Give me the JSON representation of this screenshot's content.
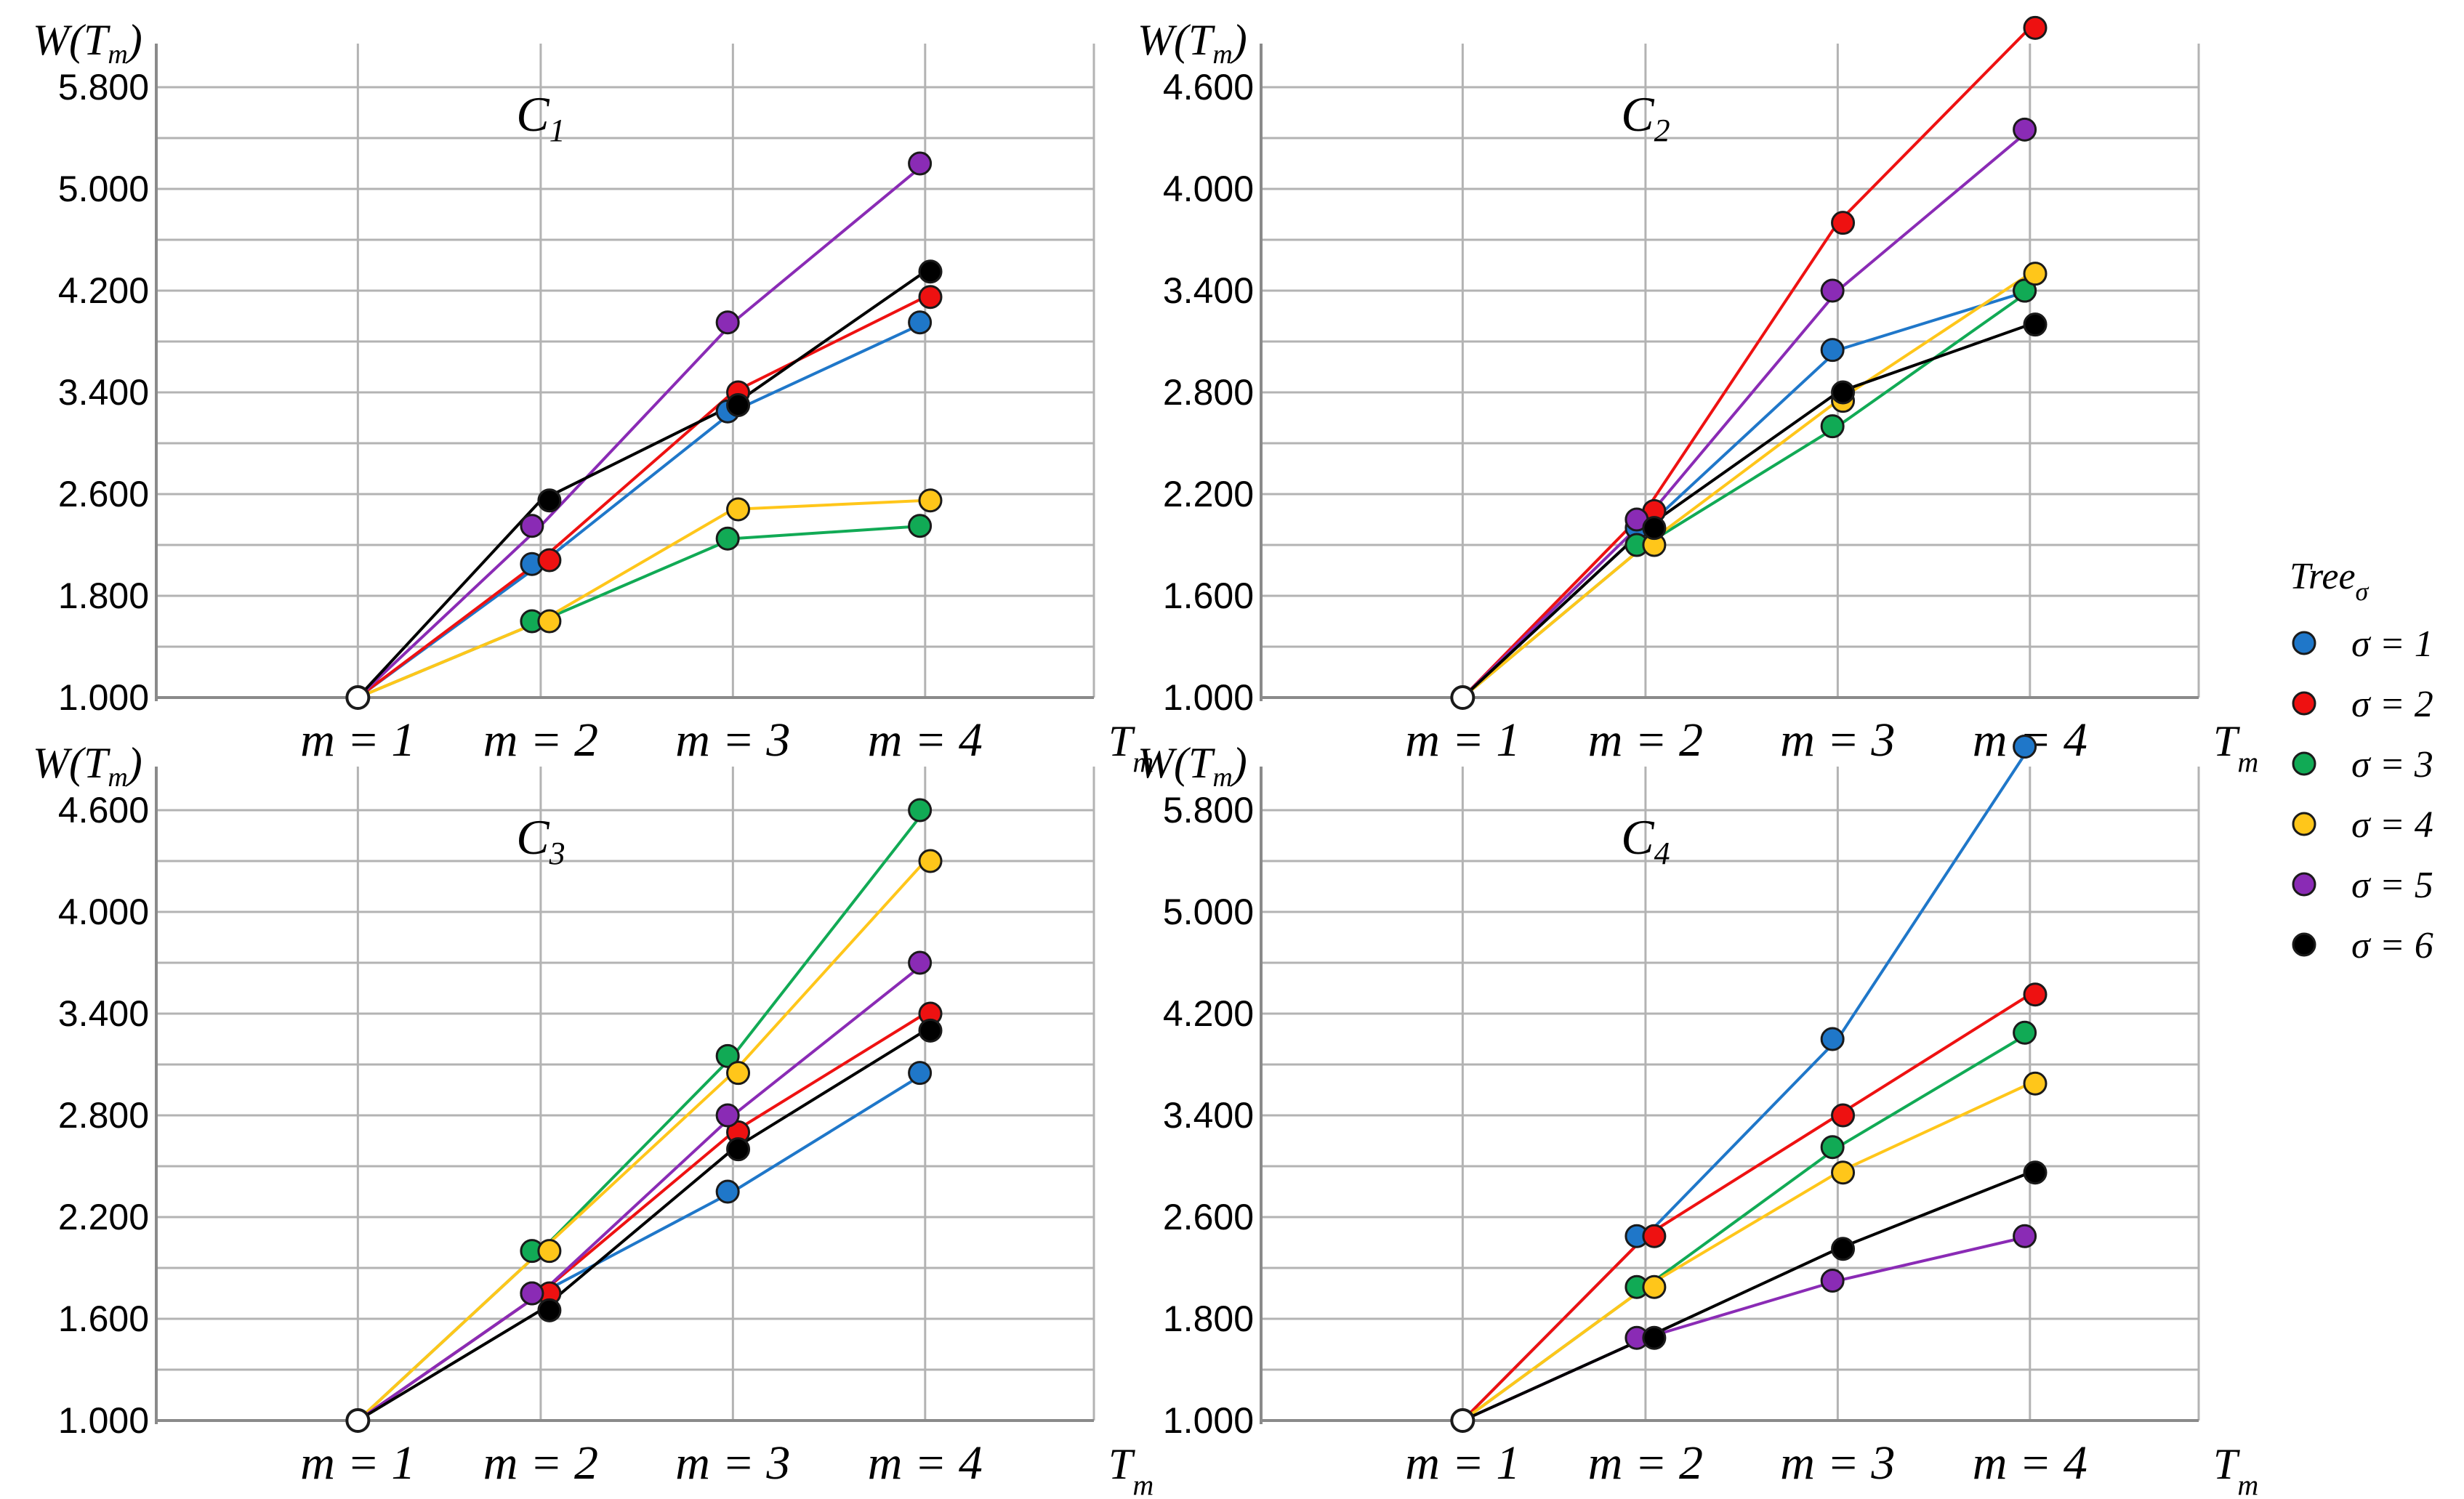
{
  "chart_data": [
    {
      "type": "line",
      "title": "C1",
      "title_main": "C",
      "title_sub": "1",
      "ylabel": "W(Tm)",
      "xlabel": "Tm",
      "categories": [
        "m = 1",
        "m = 2",
        "m = 3",
        "m = 4"
      ],
      "yticks": [
        "1.000",
        "1.800",
        "2.600",
        "3.400",
        "4.200",
        "5.000",
        "5.800"
      ],
      "ylim": [
        1.0,
        5.8
      ],
      "series": [
        {
          "name": "σ = 1",
          "values": [
            1.0,
            2.05,
            3.25,
            3.95
          ]
        },
        {
          "name": "σ = 2",
          "values": [
            1.0,
            2.08,
            3.4,
            4.15
          ]
        },
        {
          "name": "σ = 3",
          "values": [
            1.0,
            1.6,
            2.25,
            2.35
          ]
        },
        {
          "name": "σ = 4",
          "values": [
            1.0,
            1.6,
            2.48,
            2.55
          ]
        },
        {
          "name": "σ = 5",
          "values": [
            1.0,
            2.35,
            3.95,
            5.2
          ]
        },
        {
          "name": "σ = 6",
          "values": [
            1.0,
            2.55,
            3.3,
            4.35
          ]
        }
      ]
    },
    {
      "type": "line",
      "title": "C2",
      "title_main": "C",
      "title_sub": "2",
      "ylabel": "W(Tm)",
      "xlabel": "Tm",
      "categories": [
        "m = 1",
        "m = 2",
        "m = 3",
        "m = 4"
      ],
      "yticks": [
        "1.000",
        "1.600",
        "2.200",
        "2.800",
        "3.400",
        "4.000",
        "4.600"
      ],
      "ylim": [
        1.0,
        4.6
      ],
      "series": [
        {
          "name": "σ = 1",
          "values": [
            1.0,
            2.0,
            3.05,
            3.4
          ]
        },
        {
          "name": "σ = 2",
          "values": [
            1.0,
            2.1,
            3.8,
            4.95
          ]
        },
        {
          "name": "σ = 3",
          "values": [
            1.0,
            1.9,
            2.6,
            3.4
          ]
        },
        {
          "name": "σ = 4",
          "values": [
            1.0,
            1.9,
            2.75,
            3.5
          ]
        },
        {
          "name": "σ = 5",
          "values": [
            1.0,
            2.05,
            3.4,
            4.35
          ]
        },
        {
          "name": "σ = 6",
          "values": [
            1.0,
            2.0,
            2.8,
            3.2
          ]
        }
      ]
    },
    {
      "type": "line",
      "title": "C3",
      "title_main": "C",
      "title_sub": "3",
      "ylabel": "W(Tm)",
      "xlabel": "Tm",
      "categories": [
        "m = 1",
        "m = 2",
        "m = 3",
        "m = 4"
      ],
      "yticks": [
        "1.000",
        "1.600",
        "2.200",
        "2.800",
        "3.400",
        "4.000",
        "4.600"
      ],
      "ylim": [
        1.0,
        4.6
      ],
      "series": [
        {
          "name": "σ = 1",
          "values": [
            1.0,
            1.75,
            2.35,
            3.05
          ]
        },
        {
          "name": "σ = 2",
          "values": [
            1.0,
            1.75,
            2.7,
            3.4
          ]
        },
        {
          "name": "σ = 3",
          "values": [
            1.0,
            2.0,
            3.15,
            4.6
          ]
        },
        {
          "name": "σ = 4",
          "values": [
            1.0,
            2.0,
            3.05,
            4.3
          ]
        },
        {
          "name": "σ = 5",
          "values": [
            1.0,
            1.75,
            2.8,
            3.7
          ]
        },
        {
          "name": "σ = 6",
          "values": [
            1.0,
            1.65,
            2.6,
            3.3
          ]
        }
      ]
    },
    {
      "type": "line",
      "title": "C4",
      "title_main": "C",
      "title_sub": "4",
      "ylabel": "W(Tm)",
      "xlabel": "Tm",
      "categories": [
        "m = 1",
        "m = 2",
        "m = 3",
        "m = 4"
      ],
      "yticks": [
        "1.000",
        "1.800",
        "2.600",
        "3.400",
        "4.200",
        "5.000",
        "5.800"
      ],
      "ylim": [
        1.0,
        5.8
      ],
      "series": [
        {
          "name": "σ = 1",
          "values": [
            1.0,
            2.45,
            4.0,
            6.3
          ]
        },
        {
          "name": "σ = 2",
          "values": [
            1.0,
            2.45,
            3.4,
            4.35
          ]
        },
        {
          "name": "σ = 3",
          "values": [
            1.0,
            2.05,
            3.15,
            4.05
          ]
        },
        {
          "name": "σ = 4",
          "values": [
            1.0,
            2.05,
            2.95,
            3.65
          ]
        },
        {
          "name": "σ = 5",
          "values": [
            1.0,
            1.65,
            2.1,
            2.45
          ]
        },
        {
          "name": "σ = 6",
          "values": [
            1.0,
            1.65,
            2.35,
            2.95
          ]
        }
      ]
    }
  ],
  "legend": {
    "title_main": "Tree",
    "title_sub": "σ",
    "items": [
      "σ = 1",
      "σ = 2",
      "σ = 3",
      "σ = 4",
      "σ = 5",
      "σ = 6"
    ]
  },
  "colors": [
    "#1f77c9",
    "#ee1111",
    "#11aa55",
    "#ffc61a",
    "#8a2bb5",
    "#000000"
  ]
}
